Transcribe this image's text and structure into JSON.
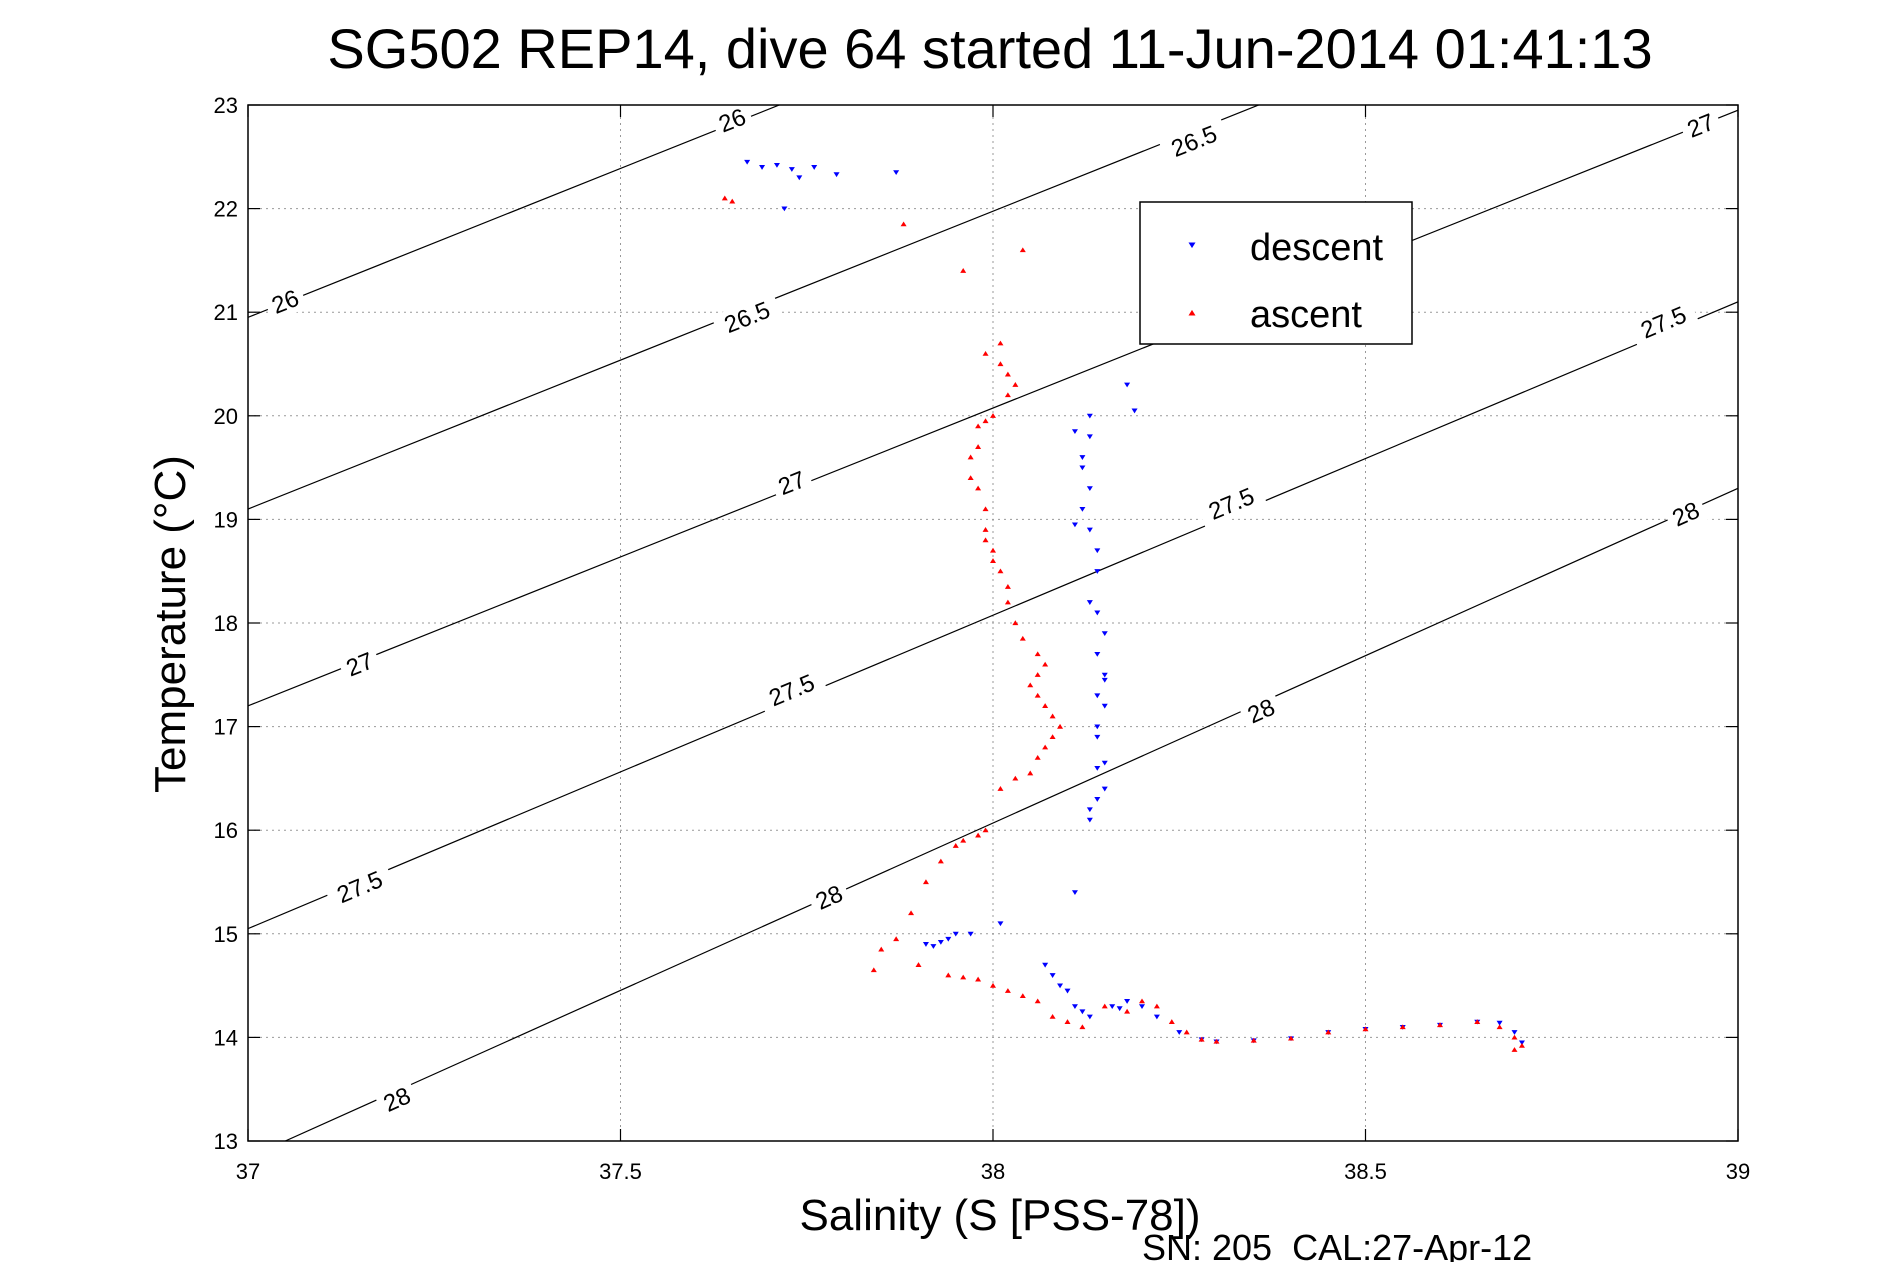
{
  "chart_data": {
    "type": "scatter",
    "title": "SG502 REP14, dive 64 started 11-Jun-2014 01:41:13",
    "xlabel": "Salinity (S [PSS-78])",
    "ylabel": "Temperature (°C)",
    "footer": "SN: 205  CAL:27-Apr-12",
    "xlim": [
      37,
      39
    ],
    "ylim": [
      13,
      23
    ],
    "xticks": [
      "37",
      "37.5",
      "38",
      "38.5",
      "39"
    ],
    "yticks": [
      "13",
      "14",
      "15",
      "16",
      "17",
      "18",
      "19",
      "20",
      "21",
      "22",
      "23"
    ],
    "grid": true,
    "legend": {
      "placement": "top-right",
      "entries": [
        {
          "name": "descent",
          "color": "#0000ff"
        },
        {
          "name": "ascent",
          "color": "#ff0000"
        }
      ]
    },
    "contours": [
      {
        "label": "26",
        "points": [
          [
            37,
            20.95
          ],
          [
            39,
            26.7
          ]
        ],
        "label_positions": [
          [
            37.05,
            21.1
          ],
          [
            37.65,
            22.85
          ]
        ]
      },
      {
        "label": "26.5",
        "points": [
          [
            37,
            19.1
          ],
          [
            39,
            24.85
          ]
        ],
        "label_positions": [
          [
            37.67,
            20.95
          ],
          [
            38.27,
            22.65
          ]
        ]
      },
      {
        "label": "27",
        "points": [
          [
            37,
            17.2
          ],
          [
            39,
            22.95
          ]
        ],
        "label_positions": [
          [
            37.15,
            17.6
          ],
          [
            37.73,
            19.35
          ],
          [
            38.95,
            22.8
          ]
        ]
      },
      {
        "label": "27.5",
        "points": [
          [
            37,
            15.05
          ],
          [
            39,
            21.1
          ]
        ],
        "label_positions": [
          [
            37.15,
            15.45
          ],
          [
            37.73,
            17.35
          ],
          [
            38.32,
            19.15
          ],
          [
            38.9,
            20.9
          ]
        ]
      },
      {
        "label": "28",
        "points": [
          [
            37.05,
            13
          ],
          [
            39,
            19.3
          ]
        ],
        "label_positions": [
          [
            37.2,
            13.4
          ],
          [
            37.78,
            15.35
          ],
          [
            38.36,
            17.15
          ],
          [
            38.93,
            19.05
          ]
        ]
      }
    ],
    "series": [
      {
        "name": "descent",
        "color": "#0000ff",
        "marker": "triangle-down",
        "x": [
          37.67,
          37.69,
          37.71,
          37.74,
          37.76,
          37.72,
          37.79,
          37.87,
          37.73,
          38.11,
          38.13,
          38.12,
          38.13,
          38.12,
          38.13,
          38.12,
          38.11,
          38.13,
          38.14,
          38.14,
          38.14,
          38.15,
          38.13,
          38.14,
          38.15,
          38.15,
          38.14,
          38.15,
          38.14,
          38.14,
          38.15,
          38.14,
          38.15,
          38.14,
          38.13,
          38.13,
          38.18,
          38.19,
          38.11,
          37.91,
          37.92,
          37.93,
          37.94,
          37.95,
          37.97,
          38.01,
          38.07,
          38.08,
          38.09,
          38.1,
          38.11,
          38.12,
          38.13,
          38.16,
          38.17,
          38.18,
          38.2,
          38.22,
          38.25,
          38.28,
          38.3,
          38.35,
          38.4,
          38.45,
          38.5,
          38.55,
          38.6,
          38.65,
          38.68,
          38.7,
          38.71
        ],
        "y": [
          22.45,
          22.4,
          22.42,
          22.3,
          22.4,
          22.0,
          22.33,
          22.35,
          22.38,
          19.85,
          20.0,
          19.6,
          19.8,
          19.5,
          19.3,
          19.1,
          18.95,
          18.9,
          18.5,
          18.7,
          18.1,
          17.9,
          18.2,
          17.7,
          17.5,
          17.45,
          17.3,
          17.2,
          17.0,
          16.9,
          16.65,
          16.6,
          16.4,
          16.3,
          16.2,
          16.1,
          20.3,
          20.05,
          15.4,
          14.9,
          14.88,
          14.92,
          14.95,
          15.0,
          15.0,
          15.1,
          14.7,
          14.6,
          14.5,
          14.45,
          14.3,
          14.25,
          14.2,
          14.3,
          14.28,
          14.35,
          14.3,
          14.2,
          14.05,
          13.98,
          13.96,
          13.97,
          13.99,
          14.05,
          14.08,
          14.1,
          14.12,
          14.15,
          14.14,
          14.05,
          13.95
        ]
      },
      {
        "name": "ascent",
        "color": "#ff0000",
        "marker": "triangle-up",
        "x": [
          37.64,
          37.65,
          37.88,
          37.96,
          38.04,
          37.99,
          38.01,
          38.02,
          38.01,
          38.03,
          38.02,
          38.0,
          37.99,
          37.98,
          37.98,
          37.97,
          37.97,
          37.98,
          37.99,
          37.99,
          38.0,
          37.99,
          38.0,
          38.01,
          38.02,
          38.02,
          38.03,
          38.04,
          38.06,
          38.07,
          38.06,
          38.05,
          38.06,
          38.07,
          38.08,
          38.09,
          38.08,
          38.07,
          38.06,
          38.05,
          38.03,
          38.01,
          37.99,
          37.98,
          37.96,
          37.95,
          37.93,
          37.91,
          37.89,
          37.87,
          37.84,
          37.85,
          37.9,
          37.94,
          37.96,
          37.98,
          38.0,
          38.02,
          38.04,
          38.06,
          38.08,
          38.1,
          38.12,
          38.15,
          38.18,
          38.2,
          38.22,
          38.24,
          38.26,
          38.28,
          38.3,
          38.35,
          38.4,
          38.45,
          38.5,
          38.55,
          38.6,
          38.65,
          38.68,
          38.7,
          38.71,
          38.7
        ],
        "y": [
          22.1,
          22.07,
          21.85,
          21.4,
          21.6,
          20.6,
          20.5,
          20.4,
          20.7,
          20.3,
          20.2,
          20.0,
          19.95,
          19.9,
          19.7,
          19.6,
          19.4,
          19.3,
          19.1,
          18.9,
          18.7,
          18.8,
          18.6,
          18.5,
          18.35,
          18.2,
          18.0,
          17.85,
          17.7,
          17.6,
          17.5,
          17.4,
          17.3,
          17.2,
          17.1,
          17.0,
          16.9,
          16.8,
          16.7,
          16.55,
          16.5,
          16.4,
          16.0,
          15.95,
          15.9,
          15.85,
          15.7,
          15.5,
          15.2,
          14.95,
          14.65,
          14.85,
          14.7,
          14.6,
          14.58,
          14.56,
          14.5,
          14.45,
          14.4,
          14.35,
          14.2,
          14.15,
          14.1,
          14.3,
          14.25,
          14.35,
          14.3,
          14.15,
          14.05,
          13.98,
          13.96,
          13.97,
          13.99,
          14.05,
          14.08,
          14.1,
          14.12,
          14.15,
          14.1,
          14.0,
          13.92,
          13.88
        ]
      }
    ]
  }
}
